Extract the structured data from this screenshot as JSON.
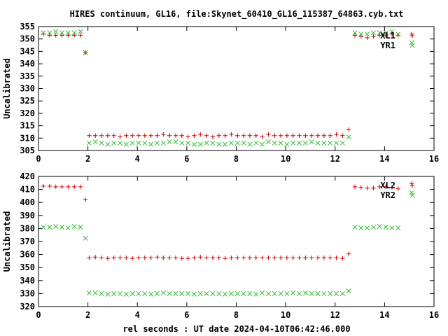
{
  "colors": {
    "series1": "#cc0000",
    "series2": "#33bb33",
    "axis": "#000000"
  },
  "chart_data": [
    {
      "type": "scatter",
      "title": "HIRES continuum, GL16, file:Skynet_60410_GL16_115387_64863.cyb.txt",
      "xlabel": "",
      "ylabel": "Uncalibrated",
      "xlim": [
        0,
        16
      ],
      "ylim": [
        305,
        355
      ],
      "xticks": [
        "0",
        "2",
        "4",
        "6",
        "8",
        "10",
        "12",
        "14",
        "16"
      ],
      "yticks": [
        "305",
        "310",
        "315",
        "320",
        "325",
        "330",
        "335",
        "340",
        "345",
        "350",
        "355"
      ],
      "grid": false,
      "legend_position": "top-right",
      "series": [
        {
          "name": "XL1",
          "marker": "plus",
          "x": [
            0.2,
            0.45,
            0.7,
            0.95,
            1.2,
            1.45,
            1.7,
            1.9,
            2.05,
            2.3,
            2.55,
            2.8,
            3.05,
            3.3,
            3.55,
            3.8,
            4.05,
            4.3,
            4.55,
            4.8,
            5.05,
            5.3,
            5.55,
            5.8,
            6.05,
            6.3,
            6.55,
            6.8,
            7.05,
            7.3,
            7.55,
            7.8,
            8.05,
            8.3,
            8.55,
            8.8,
            9.05,
            9.3,
            9.55,
            9.8,
            10.05,
            10.3,
            10.55,
            10.8,
            11.05,
            11.3,
            11.55,
            11.8,
            12.05,
            12.3,
            12.55,
            12.8,
            13.05,
            13.3,
            13.55,
            13.8,
            14.05,
            14.3,
            14.55,
            15.1
          ],
          "y": [
            352,
            351.5,
            351.5,
            351.5,
            351.5,
            351.5,
            351.5,
            344.5,
            311,
            311,
            311,
            311,
            311,
            310.5,
            311,
            311,
            311,
            311,
            311,
            311,
            311.5,
            311,
            311,
            311,
            310.5,
            311,
            311.5,
            311,
            310.5,
            311,
            311,
            311.5,
            311,
            311,
            311,
            311,
            310.5,
            311.5,
            311,
            311,
            311,
            311,
            311,
            311,
            311,
            311,
            311,
            311,
            311.5,
            311,
            313.5,
            351.5,
            351,
            350.5,
            351,
            351.5,
            351.5,
            352,
            351.5,
            352
          ]
        },
        {
          "name": "YR1",
          "marker": "cross",
          "x": [
            0.2,
            0.45,
            0.7,
            0.95,
            1.2,
            1.45,
            1.7,
            1.9,
            2.05,
            2.3,
            2.55,
            2.8,
            3.05,
            3.3,
            3.55,
            3.8,
            4.05,
            4.3,
            4.55,
            4.8,
            5.05,
            5.3,
            5.55,
            5.8,
            6.05,
            6.3,
            6.55,
            6.8,
            7.05,
            7.3,
            7.55,
            7.8,
            8.05,
            8.3,
            8.55,
            8.8,
            9.05,
            9.3,
            9.55,
            9.8,
            10.05,
            10.3,
            10.55,
            10.8,
            11.05,
            11.3,
            11.55,
            11.8,
            12.05,
            12.3,
            12.55,
            12.8,
            13.05,
            13.3,
            13.55,
            13.8,
            14.05,
            14.3,
            14.55,
            15.1
          ],
          "y": [
            352.5,
            352.5,
            353,
            352.5,
            352.5,
            352.5,
            353,
            344.5,
            308,
            308.5,
            308,
            307.5,
            308,
            308,
            307.5,
            308,
            308,
            308,
            307.5,
            308,
            308,
            308.5,
            308.5,
            308,
            308,
            307.5,
            307.5,
            308,
            308,
            307.5,
            307.5,
            308,
            308,
            308,
            307.5,
            308,
            307.5,
            308.5,
            308,
            308,
            307.5,
            308,
            308,
            308,
            308.5,
            308,
            308,
            308,
            308,
            308,
            310.5,
            352.5,
            352,
            352,
            352.5,
            352.5,
            352.5,
            353,
            352,
            348.5
          ]
        }
      ]
    },
    {
      "type": "scatter",
      "title": "",
      "xlabel": "rel seconds : UT date 2024-04-10T06:42:46.000",
      "ylabel": "Uncalibrated",
      "xlim": [
        0,
        16
      ],
      "ylim": [
        320,
        420
      ],
      "xticks": [
        "0",
        "2",
        "4",
        "6",
        "8",
        "10",
        "12",
        "14",
        "16"
      ],
      "yticks": [
        "320",
        "330",
        "340",
        "350",
        "360",
        "370",
        "380",
        "390",
        "400",
        "410",
        "420"
      ],
      "grid": false,
      "legend_position": "top-right",
      "series": [
        {
          "name": "XL2",
          "marker": "plus",
          "x": [
            0.2,
            0.45,
            0.7,
            0.95,
            1.2,
            1.45,
            1.7,
            1.9,
            2.05,
            2.3,
            2.55,
            2.8,
            3.05,
            3.3,
            3.55,
            3.8,
            4.05,
            4.3,
            4.55,
            4.8,
            5.05,
            5.3,
            5.55,
            5.8,
            6.05,
            6.3,
            6.55,
            6.8,
            7.05,
            7.3,
            7.55,
            7.8,
            8.05,
            8.3,
            8.55,
            8.8,
            9.05,
            9.3,
            9.55,
            9.8,
            10.05,
            10.3,
            10.55,
            10.8,
            11.05,
            11.3,
            11.55,
            11.8,
            12.05,
            12.3,
            12.55,
            12.8,
            13.05,
            13.3,
            13.55,
            13.8,
            14.05,
            14.3,
            14.55,
            15.1
          ],
          "y": [
            412.5,
            412.5,
            412,
            412,
            412,
            412,
            412,
            402,
            357.5,
            358,
            357.5,
            357,
            357.5,
            357.5,
            357.5,
            357,
            357.5,
            357.5,
            357.5,
            358,
            357.5,
            357.5,
            357.5,
            357,
            357,
            357.5,
            358,
            357.5,
            357.5,
            357.5,
            357,
            357.5,
            357.5,
            357.5,
            357.5,
            357.5,
            357.5,
            357.5,
            357.5,
            357.5,
            357.5,
            357.5,
            357.5,
            357.5,
            357.5,
            357.5,
            357.5,
            357.5,
            357.5,
            357,
            360.5,
            412,
            411.5,
            411,
            411,
            412,
            412,
            411.5,
            410.5,
            414.5
          ]
        },
        {
          "name": "YR2",
          "marker": "cross",
          "x": [
            0.2,
            0.45,
            0.7,
            0.95,
            1.2,
            1.45,
            1.7,
            1.9,
            2.05,
            2.3,
            2.55,
            2.8,
            3.05,
            3.3,
            3.55,
            3.8,
            4.05,
            4.3,
            4.55,
            4.8,
            5.05,
            5.3,
            5.55,
            5.8,
            6.05,
            6.3,
            6.55,
            6.8,
            7.05,
            7.3,
            7.55,
            7.8,
            8.05,
            8.3,
            8.55,
            8.8,
            9.05,
            9.3,
            9.55,
            9.8,
            10.05,
            10.3,
            10.55,
            10.8,
            11.05,
            11.3,
            11.55,
            11.8,
            12.05,
            12.3,
            12.55,
            12.8,
            13.05,
            13.3,
            13.55,
            13.8,
            14.05,
            14.3,
            14.55,
            15.1
          ],
          "y": [
            381,
            381,
            381.5,
            381,
            380.5,
            381.5,
            381,
            372.5,
            330.5,
            330.5,
            330,
            329.5,
            330,
            330,
            329.5,
            330,
            330,
            330,
            329.5,
            330,
            330.5,
            330,
            330,
            330,
            330,
            329.5,
            330,
            330,
            330,
            330,
            329.5,
            330,
            330,
            330,
            330,
            329.5,
            330.5,
            330,
            330,
            330,
            330,
            330.5,
            330,
            330.5,
            330,
            330,
            330,
            330,
            330,
            330,
            332,
            381,
            380.5,
            380.5,
            381,
            381.5,
            381,
            380.5,
            380.5,
            407.5
          ]
        }
      ]
    }
  ]
}
